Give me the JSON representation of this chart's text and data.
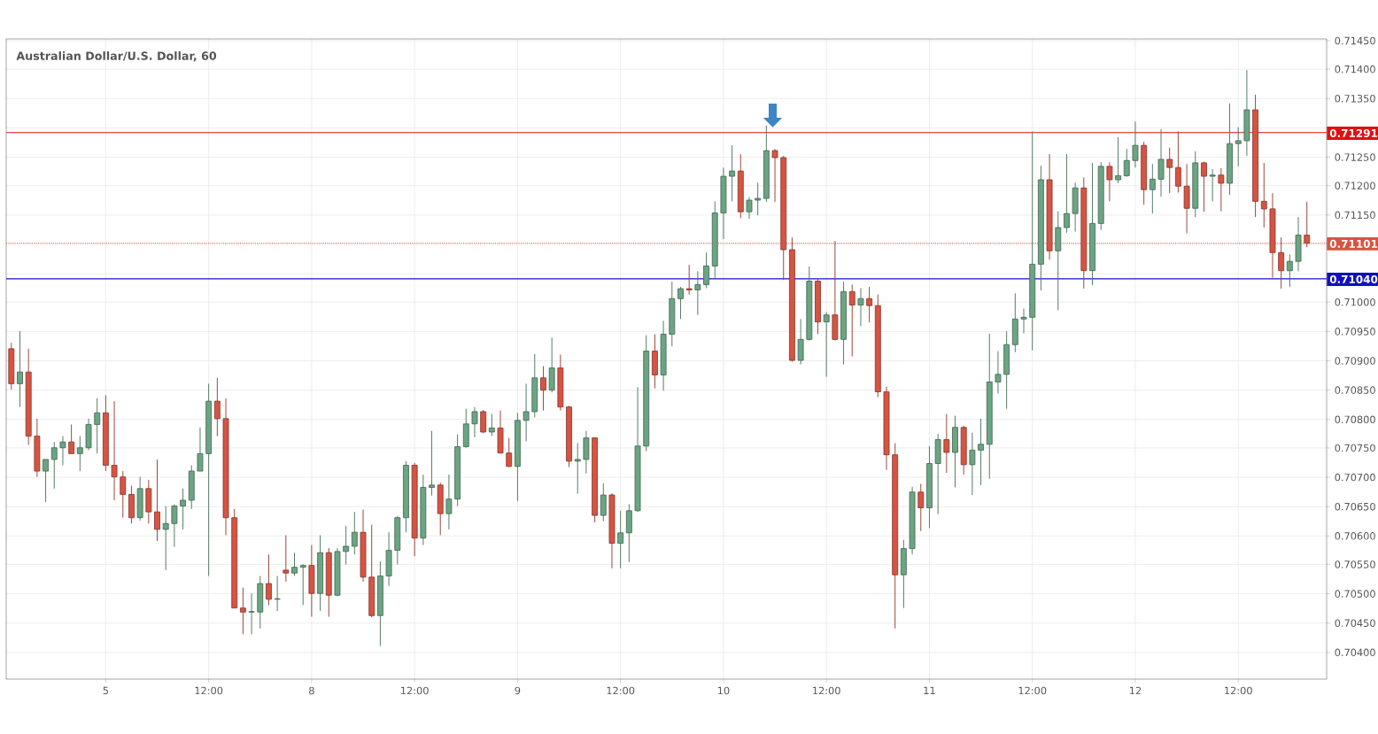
{
  "chart_data": {
    "type": "candlestick",
    "title": "Australian Dollar/U.S. Dollar, 60",
    "categories": [
      null,
      null,
      null,
      null,
      null,
      null,
      null,
      null,
      null,
      null,
      null,
      "5",
      null,
      null,
      null,
      null,
      null,
      null,
      null,
      null,
      null,
      null,
      null,
      "12:00",
      null,
      null,
      null,
      null,
      null,
      null,
      null,
      null,
      null,
      null,
      null,
      "8",
      null,
      null,
      null,
      null,
      null,
      null,
      null,
      null,
      null,
      null,
      null,
      "12:00",
      null,
      null,
      null,
      null,
      null,
      null,
      null,
      null,
      null,
      null,
      null,
      "9",
      null,
      null,
      null,
      null,
      null,
      null,
      null,
      null,
      null,
      null,
      null,
      "12:00",
      null,
      null,
      null,
      null,
      null,
      null,
      null,
      null,
      null,
      null,
      null,
      "10",
      null,
      null,
      null,
      null,
      null,
      null,
      null,
      null,
      null,
      null,
      null,
      "12:00",
      null,
      null,
      null,
      null,
      null,
      null,
      null,
      null,
      null,
      null,
      null,
      "11",
      null,
      null,
      null,
      null,
      null,
      null,
      null,
      null,
      null,
      null,
      null,
      "12:00",
      null,
      null,
      null,
      null,
      null,
      null,
      null,
      null,
      null,
      null,
      null,
      "12",
      null,
      null,
      null,
      null,
      null,
      null,
      null,
      null,
      null,
      null,
      null,
      "12:00",
      null,
      null,
      null,
      null,
      null,
      null,
      null,
      null
    ],
    "ohlc": [
      [
        0.7092,
        0.7093,
        0.7085,
        0.7086
      ],
      [
        0.7086,
        0.7095,
        0.7082,
        0.7088
      ],
      [
        0.7088,
        0.7092,
        0.70755,
        0.7077
      ],
      [
        0.7077,
        0.708,
        0.707,
        0.7071
      ],
      [
        0.7071,
        0.7073,
        0.70657,
        0.7073
      ],
      [
        0.7073,
        0.7076,
        0.7068,
        0.7075
      ],
      [
        0.7075,
        0.7077,
        0.7072,
        0.7076
      ],
      [
        0.7076,
        0.7079,
        0.7074,
        0.7074
      ],
      [
        0.7074,
        0.7077,
        0.7071,
        0.7075
      ],
      [
        0.7075,
        0.708,
        0.70746,
        0.7079
      ],
      [
        0.7079,
        0.70835,
        0.7074,
        0.7081
      ],
      [
        0.7081,
        0.7084,
        0.7071,
        0.7072
      ],
      [
        0.7072,
        0.7083,
        0.7066,
        0.707
      ],
      [
        0.707,
        0.7071,
        0.7063,
        0.7067
      ],
      [
        0.7067,
        0.70685,
        0.7062,
        0.7063
      ],
      [
        0.7063,
        0.707,
        0.70625,
        0.7068
      ],
      [
        0.7068,
        0.70695,
        0.7062,
        0.7064
      ],
      [
        0.7064,
        0.7073,
        0.7059,
        0.7061
      ],
      [
        0.7061,
        0.7065,
        0.7054,
        0.7062
      ],
      [
        0.7062,
        0.70653,
        0.7058,
        0.7065
      ],
      [
        0.7065,
        0.7068,
        0.7061,
        0.7066
      ],
      [
        0.7066,
        0.7072,
        0.70645,
        0.7071
      ],
      [
        0.7071,
        0.70785,
        0.7071,
        0.7074
      ],
      [
        0.7074,
        0.7086,
        0.7053,
        0.7083
      ],
      [
        0.7083,
        0.7087,
        0.7077,
        0.708
      ],
      [
        0.708,
        0.70835,
        0.706,
        0.7063
      ],
      [
        0.7063,
        0.70645,
        0.70475,
        0.70475
      ],
      [
        0.70475,
        0.7051,
        0.7043,
        0.70468
      ],
      [
        0.70468,
        0.705,
        0.7043,
        0.70469
      ],
      [
        0.70468,
        0.7053,
        0.7044,
        0.70517
      ],
      [
        0.70517,
        0.70567,
        0.7048,
        0.7049
      ],
      [
        0.7049,
        0.7053,
        0.7047,
        0.70491
      ],
      [
        0.7054,
        0.706,
        0.7052,
        0.70535
      ],
      [
        0.70535,
        0.7057,
        0.7053,
        0.70545
      ],
      [
        0.70545,
        0.7055,
        0.7048,
        0.70548
      ],
      [
        0.70548,
        0.70583,
        0.7046,
        0.705
      ],
      [
        0.705,
        0.706,
        0.7047,
        0.7057
      ],
      [
        0.7057,
        0.70578,
        0.7046,
        0.70497
      ],
      [
        0.70497,
        0.70578,
        0.70495,
        0.70572
      ],
      [
        0.70572,
        0.70616,
        0.7055,
        0.70581
      ],
      [
        0.70581,
        0.7064,
        0.70567,
        0.70605
      ],
      [
        0.70605,
        0.70644,
        0.7052,
        0.70528
      ],
      [
        0.70528,
        0.70618,
        0.70459,
        0.70462
      ],
      [
        0.70462,
        0.70555,
        0.7041,
        0.7053
      ],
      [
        0.7053,
        0.70605,
        0.70513,
        0.70574
      ],
      [
        0.70574,
        0.70633,
        0.7055,
        0.7063
      ],
      [
        0.7063,
        0.70727,
        0.70605,
        0.7072
      ],
      [
        0.7072,
        0.70724,
        0.70564,
        0.70595
      ],
      [
        0.70595,
        0.70704,
        0.70583,
        0.70682
      ],
      [
        0.70682,
        0.70779,
        0.70668,
        0.70686
      ],
      [
        0.70686,
        0.7069,
        0.706,
        0.70637
      ],
      [
        0.70637,
        0.70704,
        0.7061,
        0.70662
      ],
      [
        0.70662,
        0.70773,
        0.7065,
        0.70752
      ],
      [
        0.70752,
        0.70817,
        0.7075,
        0.70791
      ],
      [
        0.70791,
        0.7082,
        0.70768,
        0.70812
      ],
      [
        0.70812,
        0.70815,
        0.70775,
        0.70777
      ],
      [
        0.70777,
        0.70808,
        0.7077,
        0.70784
      ],
      [
        0.70784,
        0.70814,
        0.7074,
        0.70741
      ],
      [
        0.70741,
        0.70767,
        0.70717,
        0.70718
      ],
      [
        0.70718,
        0.7081,
        0.70659,
        0.70797
      ],
      [
        0.70797,
        0.7086,
        0.70761,
        0.70812
      ],
      [
        0.70812,
        0.70911,
        0.70802,
        0.7087
      ],
      [
        0.7087,
        0.7089,
        0.70814,
        0.70849
      ],
      [
        0.70849,
        0.70939,
        0.70845,
        0.70887
      ],
      [
        0.70887,
        0.7091,
        0.70814,
        0.7082
      ],
      [
        0.7082,
        0.70822,
        0.70717,
        0.70727
      ],
      [
        0.70727,
        0.70758,
        0.70671,
        0.7073
      ],
      [
        0.7073,
        0.70779,
        0.70706,
        0.70767
      ],
      [
        0.70767,
        0.70768,
        0.70622,
        0.70634
      ],
      [
        0.70634,
        0.70689,
        0.70624,
        0.70669
      ],
      [
        0.70669,
        0.70672,
        0.70543,
        0.70586
      ],
      [
        0.70586,
        0.70642,
        0.70543,
        0.70604
      ],
      [
        0.70604,
        0.70653,
        0.70554,
        0.70642
      ],
      [
        0.70642,
        0.70854,
        0.7064,
        0.70753
      ],
      [
        0.70753,
        0.70943,
        0.70744,
        0.70916
      ],
      [
        0.70916,
        0.70945,
        0.70852,
        0.70875
      ],
      [
        0.70875,
        0.70968,
        0.70848,
        0.70945
      ],
      [
        0.70945,
        0.71035,
        0.70924,
        0.71006
      ],
      [
        0.71006,
        0.71026,
        0.70971,
        0.71023
      ],
      [
        0.71023,
        0.71064,
        0.71013,
        0.71021
      ],
      [
        0.71021,
        0.71053,
        0.70978,
        0.7103
      ],
      [
        0.7103,
        0.71085,
        0.71024,
        0.71062
      ],
      [
        0.71062,
        0.71173,
        0.71041,
        0.71153
      ],
      [
        0.71153,
        0.71231,
        0.71108,
        0.71216
      ],
      [
        0.71216,
        0.71269,
        0.71173,
        0.71225
      ],
      [
        0.71225,
        0.71254,
        0.71144,
        0.71155
      ],
      [
        0.71155,
        0.7118,
        0.71143,
        0.71175
      ],
      [
        0.71175,
        0.71205,
        0.71149,
        0.71178
      ],
      [
        0.71178,
        0.71303,
        0.71172,
        0.7126
      ],
      [
        0.7126,
        0.71263,
        0.71172,
        0.71248
      ],
      [
        0.71248,
        0.71251,
        0.71038,
        0.7109
      ],
      [
        0.7109,
        0.71111,
        0.70898,
        0.709
      ],
      [
        0.709,
        0.70971,
        0.70893,
        0.70936
      ],
      [
        0.70936,
        0.71061,
        0.70934,
        0.71036
      ],
      [
        0.71036,
        0.7104,
        0.70945,
        0.70966
      ],
      [
        0.70966,
        0.70983,
        0.70872,
        0.70978
      ],
      [
        0.70978,
        0.71105,
        0.70934,
        0.70936
      ],
      [
        0.70936,
        0.71035,
        0.70893,
        0.71018
      ],
      [
        0.71018,
        0.7103,
        0.70907,
        0.70995
      ],
      [
        0.70995,
        0.71024,
        0.70959,
        0.71006
      ],
      [
        0.71006,
        0.71026,
        0.70965,
        0.70994
      ],
      [
        0.70994,
        0.71013,
        0.70837,
        0.70846
      ],
      [
        0.70846,
        0.70855,
        0.70712,
        0.70738
      ],
      [
        0.70738,
        0.70758,
        0.7044,
        0.70532
      ],
      [
        0.70532,
        0.70592,
        0.70475,
        0.70577
      ],
      [
        0.70577,
        0.70683,
        0.70567,
        0.70674
      ],
      [
        0.70674,
        0.70688,
        0.70607,
        0.70647
      ],
      [
        0.70647,
        0.70753,
        0.70612,
        0.70723
      ],
      [
        0.70723,
        0.70774,
        0.70636,
        0.70764
      ],
      [
        0.70764,
        0.70808,
        0.70707,
        0.70742
      ],
      [
        0.70742,
        0.70805,
        0.70682,
        0.70785
      ],
      [
        0.70785,
        0.70788,
        0.70704,
        0.70721
      ],
      [
        0.70721,
        0.70776,
        0.70669,
        0.70746
      ],
      [
        0.70746,
        0.708,
        0.70686,
        0.70756
      ],
      [
        0.70756,
        0.70946,
        0.70697,
        0.70863
      ],
      [
        0.70863,
        0.70916,
        0.70843,
        0.70876
      ],
      [
        0.70876,
        0.7095,
        0.70817,
        0.70927
      ],
      [
        0.70927,
        0.71015,
        0.70914,
        0.70971
      ],
      [
        0.70971,
        0.70989,
        0.70946,
        0.70974
      ],
      [
        0.70974,
        0.71293,
        0.70917,
        0.71065
      ],
      [
        0.71065,
        0.71234,
        0.7102,
        0.7121
      ],
      [
        0.7121,
        0.71254,
        0.71073,
        0.71088
      ],
      [
        0.71088,
        0.71156,
        0.70986,
        0.71128
      ],
      [
        0.71128,
        0.71254,
        0.71119,
        0.71152
      ],
      [
        0.71152,
        0.71205,
        0.71121,
        0.71196
      ],
      [
        0.71196,
        0.71214,
        0.71023,
        0.71054
      ],
      [
        0.71054,
        0.71239,
        0.71029,
        0.71135
      ],
      [
        0.71135,
        0.7124,
        0.71124,
        0.71233
      ],
      [
        0.71233,
        0.7124,
        0.71173,
        0.7121
      ],
      [
        0.7121,
        0.71283,
        0.71204,
        0.71217
      ],
      [
        0.71217,
        0.71263,
        0.71215,
        0.71243
      ],
      [
        0.71243,
        0.7131,
        0.71231,
        0.71269
      ],
      [
        0.71269,
        0.71275,
        0.71167,
        0.71193
      ],
      [
        0.71193,
        0.71237,
        0.71152,
        0.71211
      ],
      [
        0.71211,
        0.71297,
        0.71181,
        0.71245
      ],
      [
        0.71245,
        0.71265,
        0.71187,
        0.71231
      ],
      [
        0.71231,
        0.71293,
        0.71188,
        0.71199
      ],
      [
        0.71199,
        0.71237,
        0.71118,
        0.71161
      ],
      [
        0.71161,
        0.71259,
        0.71146,
        0.71239
      ],
      [
        0.71239,
        0.71241,
        0.71155,
        0.71216
      ],
      [
        0.71216,
        0.71228,
        0.71173,
        0.71218
      ],
      [
        0.71218,
        0.7123,
        0.71156,
        0.71204
      ],
      [
        0.71204,
        0.71341,
        0.71184,
        0.71272
      ],
      [
        0.71272,
        0.713,
        0.71233,
        0.71277
      ],
      [
        0.71277,
        0.71398,
        0.71251,
        0.7133
      ],
      [
        0.7133,
        0.71356,
        0.71146,
        0.71173
      ],
      [
        0.71173,
        0.71239,
        0.71128,
        0.7116
      ],
      [
        0.7116,
        0.71187,
        0.71042,
        0.71085
      ],
      [
        0.71085,
        0.71111,
        0.71023,
        0.71054
      ],
      [
        0.71054,
        0.71082,
        0.71026,
        0.7107
      ],
      [
        0.7107,
        0.71146,
        0.71053,
        0.71115
      ],
      [
        0.71115,
        0.71172,
        0.71094,
        0.71101
      ]
    ],
    "colors": [
      "#d75442",
      "#6ba583",
      "#d75442",
      "#d75442",
      "#6ba583",
      "#6ba583",
      "#6ba583",
      "#d75442",
      "#6ba583",
      "#6ba583",
      "#6ba583",
      "#d75442",
      "#d75442",
      "#d75442",
      "#d75442",
      "#6ba583",
      "#d75442",
      "#d75442",
      "#6ba583",
      "#6ba583",
      "#6ba583",
      "#6ba583",
      "#6ba583",
      "#6ba583",
      "#d75442",
      "#d75442",
      "#d75442",
      "#d75442",
      "#6ba583",
      "#6ba583",
      "#d75442",
      "#6ba583",
      "#d75442",
      "#6ba583",
      "#6ba583",
      "#d75442",
      "#6ba583",
      "#d75442",
      "#6ba583",
      "#6ba583",
      "#6ba583",
      "#d75442",
      "#d75442",
      "#6ba583",
      "#6ba583",
      "#6ba583",
      "#6ba583",
      "#d75442",
      "#6ba583",
      "#6ba583",
      "#d75442",
      "#6ba583",
      "#6ba583",
      "#6ba583",
      "#6ba583",
      "#d75442",
      "#6ba583",
      "#d75442",
      "#d75442",
      "#6ba583",
      "#6ba583",
      "#6ba583",
      "#d75442",
      "#6ba583",
      "#d75442",
      "#d75442",
      "#6ba583",
      "#6ba583",
      "#d75442",
      "#6ba583",
      "#d75442",
      "#6ba583",
      "#6ba583",
      "#6ba583",
      "#6ba583",
      "#d75442",
      "#6ba583",
      "#6ba583",
      "#6ba583",
      "#d75442",
      "#6ba583",
      "#6ba583",
      "#6ba583",
      "#6ba583",
      "#6ba583",
      "#d75442",
      "#6ba583",
      "#6ba583",
      "#6ba583",
      "#d75442",
      "#d75442",
      "#d75442",
      "#6ba583",
      "#6ba583",
      "#d75442",
      "#6ba583",
      "#d75442",
      "#6ba583",
      "#d75442",
      "#6ba583",
      "#d75442",
      "#d75442",
      "#d75442",
      "#d75442",
      "#6ba583",
      "#6ba583",
      "#d75442",
      "#6ba583",
      "#6ba583",
      "#d75442",
      "#6ba583",
      "#d75442",
      "#6ba583",
      "#6ba583",
      "#6ba583",
      "#6ba583",
      "#6ba583",
      "#6ba583",
      "#6ba583",
      "#6ba583",
      "#6ba583",
      "#d75442",
      "#6ba583",
      "#6ba583",
      "#6ba583",
      "#d75442",
      "#6ba583",
      "#6ba583",
      "#d75442",
      "#6ba583",
      "#6ba583",
      "#6ba583",
      "#d75442",
      "#6ba583",
      "#6ba583",
      "#d75442",
      "#d75442",
      "#d75442",
      "#6ba583",
      "#d75442",
      "#6ba583",
      "#d75442",
      "#6ba583",
      "#6ba583",
      "#6ba583",
      "#d75442",
      "#d75442",
      "#d75442",
      "#d75442",
      "#6ba583",
      "#6ba583",
      "#d75442"
    ],
    "ylim": [
      0.70353,
      0.71453
    ],
    "yticks": [
      {
        "value": 0.704,
        "label": "0.70400"
      },
      {
        "value": 0.7045,
        "label": "0.70450"
      },
      {
        "value": 0.705,
        "label": "0.70500"
      },
      {
        "value": 0.7055,
        "label": "0.70550"
      },
      {
        "value": 0.706,
        "label": "0.70600"
      },
      {
        "value": 0.7065,
        "label": "0.70650"
      },
      {
        "value": 0.707,
        "label": "0.70700"
      },
      {
        "value": 0.7075,
        "label": "0.70750"
      },
      {
        "value": 0.708,
        "label": "0.70800"
      },
      {
        "value": 0.7085,
        "label": "0.70850"
      },
      {
        "value": 0.709,
        "label": "0.70900"
      },
      {
        "value": 0.7095,
        "label": "0.70950"
      },
      {
        "value": 0.71,
        "label": "0.71000"
      },
      {
        "value": 0.7105,
        "label": null
      },
      {
        "value": 0.711,
        "label": null
      },
      {
        "value": 0.7115,
        "label": "0.71150"
      },
      {
        "value": 0.712,
        "label": "0.71200"
      },
      {
        "value": 0.7125,
        "label": "0.71250"
      },
      {
        "value": 0.713,
        "label": null
      },
      {
        "value": 0.7135,
        "label": "0.71350"
      },
      {
        "value": 0.714,
        "label": "0.71400"
      },
      {
        "value": 0.7145,
        "label": "0.71450"
      }
    ],
    "grid": true,
    "ref_lines": [
      {
        "axis": "y",
        "value": 0.71291,
        "label": "0.71291",
        "color": "#e01010",
        "line_style": "solid"
      },
      {
        "axis": "y",
        "value": 0.71101,
        "label": "0.71101",
        "color": "#d75442",
        "line_style": "dotted"
      },
      {
        "axis": "y",
        "value": 0.7104,
        "label": "0.71040",
        "color": "#1010c0",
        "line_style": "solid"
      }
    ]
  }
}
